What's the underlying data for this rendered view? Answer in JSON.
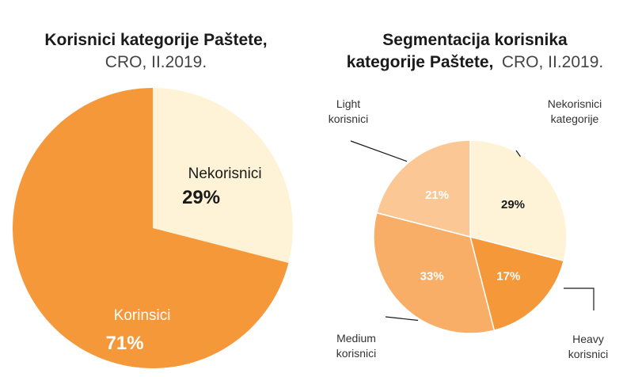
{
  "colors": {
    "dark_orange": "#F4983A",
    "medium_orange": "#F8AE66",
    "light_orange": "#FBC895",
    "cream": "#FEF3D7",
    "text_dark": "#1a1a1a",
    "text_white": "#ffffff"
  },
  "chart_data": [
    {
      "type": "pie",
      "title_bold": "Korisnici kategorije Paštete,",
      "title_light": "CRO, II.2019.",
      "slices": [
        {
          "label": "Nekorisnici",
          "value": 29,
          "display": "29%",
          "color": "#FEF3D7",
          "text_color": "#1a1a1a"
        },
        {
          "label": "Korinsici",
          "value": 71,
          "display": "71%",
          "color": "#F4983A",
          "text_color": "#ffffff"
        }
      ]
    },
    {
      "type": "pie",
      "title_line1": "Segmentacija korisnika",
      "title_line2_bold": "kategorije Paštete,",
      "title_line2_light": "CRO, II.2019.",
      "slices": [
        {
          "label": "Nekorisnici kategorije",
          "label_lines": [
            "Nekorisnici",
            "kategorije"
          ],
          "value": 29,
          "display": "29%",
          "color": "#FEF3D7",
          "text_color": "#1a1a1a"
        },
        {
          "label": "Heavy korisnici",
          "label_lines": [
            "Heavy",
            "korisnici"
          ],
          "value": 17,
          "display": "17%",
          "color": "#F4983A",
          "text_color": "#ffffff"
        },
        {
          "label": "Medium korisnici",
          "label_lines": [
            "Medium",
            "korisnici"
          ],
          "value": 33,
          "display": "33%",
          "color": "#F8AE66",
          "text_color": "#ffffff"
        },
        {
          "label": "Light korisnici",
          "label_lines": [
            "Light",
            "korisnici"
          ],
          "value": 21,
          "display": "21%",
          "color": "#FBC895",
          "text_color": "#ffffff"
        }
      ]
    }
  ]
}
